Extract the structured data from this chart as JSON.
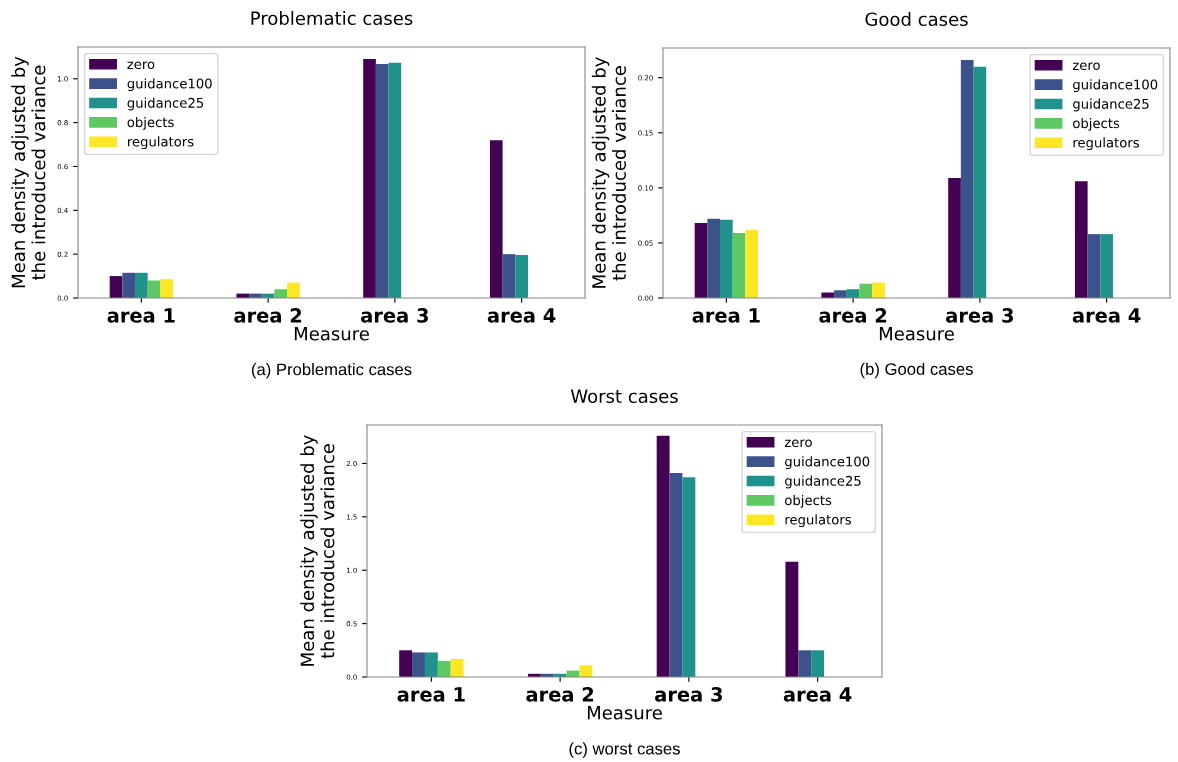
{
  "chart_data": [
    {
      "type": "bar",
      "title": "Problematic cases",
      "xlabel": "Measure",
      "ylabel": "Mean density adjusted by\nthe introduced variance",
      "annotations": [
        "(a) Problematic cases"
      ],
      "categories": [
        "area 1",
        "area 2",
        "area 3",
        "area 4"
      ],
      "series": [
        {
          "name": "zero",
          "color": "#440154",
          "values": [
            0.1,
            0.02,
            1.09,
            0.72
          ]
        },
        {
          "name": "guidance100",
          "color": "#3b528b",
          "values": [
            0.115,
            0.02,
            1.067,
            0.2
          ]
        },
        {
          "name": "guidance25",
          "color": "#21918c",
          "values": [
            0.115,
            0.02,
            1.073,
            0.196
          ]
        },
        {
          "name": "objects",
          "color": "#5ec962",
          "values": [
            0.08,
            0.04,
            0,
            0
          ]
        },
        {
          "name": "regulators",
          "color": "#fde725",
          "values": [
            0.086,
            0.07,
            0,
            0
          ]
        }
      ],
      "ylim": [
        0,
        1.145
      ],
      "yticks": [
        {
          "value": 0,
          "label": "0.0"
        },
        {
          "value": 0.2,
          "label": "0.2"
        },
        {
          "value": 0.4,
          "label": "0.4"
        },
        {
          "value": 0.6,
          "label": "0.6"
        },
        {
          "value": 0.8,
          "label": "0.8"
        },
        {
          "value": 1.0,
          "label": "1.0"
        }
      ],
      "grid": false,
      "legend": "top left"
    },
    {
      "type": "bar",
      "title": "Good cases",
      "xlabel": "Measure",
      "ylabel": "Mean density adjusted by\nthe introduced variance",
      "annotations": [
        "(b) Good cases"
      ],
      "categories": [
        "area 1",
        "area 2",
        "area 3",
        "area 4"
      ],
      "series": [
        {
          "name": "zero",
          "color": "#440154",
          "values": [
            0.068,
            0.005,
            0.109,
            0.106
          ]
        },
        {
          "name": "guidance100",
          "color": "#3b528b",
          "values": [
            0.072,
            0.007,
            0.216,
            0.058
          ]
        },
        {
          "name": "guidance25",
          "color": "#21918c",
          "values": [
            0.071,
            0.008,
            0.21,
            0.058
          ]
        },
        {
          "name": "objects",
          "color": "#5ec962",
          "values": [
            0.059,
            0.013,
            0,
            0
          ]
        },
        {
          "name": "regulators",
          "color": "#fde725",
          "values": [
            0.062,
            0.014,
            0,
            0
          ]
        }
      ],
      "ylim": [
        0,
        0.227
      ],
      "yticks": [
        {
          "value": 0,
          "label": "0.00"
        },
        {
          "value": 0.05,
          "label": "0.05"
        },
        {
          "value": 0.1,
          "label": "0.10"
        },
        {
          "value": 0.15,
          "label": "0.15"
        },
        {
          "value": 0.2,
          "label": "0.20"
        }
      ],
      "grid": false,
      "legend": "top right"
    },
    {
      "type": "bar",
      "title": "Worst cases",
      "xlabel": "Measure",
      "ylabel": "Mean density adjusted by\nthe introduced variance",
      "annotations": [
        "(c) worst cases"
      ],
      "categories": [
        "area 1",
        "area 2",
        "area 3",
        "area 4"
      ],
      "series": [
        {
          "name": "zero",
          "color": "#440154",
          "values": [
            0.25,
            0.03,
            2.26,
            1.08
          ]
        },
        {
          "name": "guidance100",
          "color": "#3b528b",
          "values": [
            0.23,
            0.03,
            1.91,
            0.25
          ]
        },
        {
          "name": "guidance25",
          "color": "#21918c",
          "values": [
            0.23,
            0.03,
            1.87,
            0.25
          ]
        },
        {
          "name": "objects",
          "color": "#5ec962",
          "values": [
            0.15,
            0.06,
            0,
            0
          ]
        },
        {
          "name": "regulators",
          "color": "#fde725",
          "values": [
            0.17,
            0.11,
            0,
            0
          ]
        }
      ],
      "ylim": [
        0,
        2.36
      ],
      "yticks": [
        {
          "value": 0,
          "label": "0.0"
        },
        {
          "value": 0.5,
          "label": "0.5"
        },
        {
          "value": 1.0,
          "label": "1.0"
        },
        {
          "value": 1.5,
          "label": "1.5"
        },
        {
          "value": 2.0,
          "label": "2.0"
        }
      ],
      "grid": false,
      "legend": "top right"
    }
  ]
}
